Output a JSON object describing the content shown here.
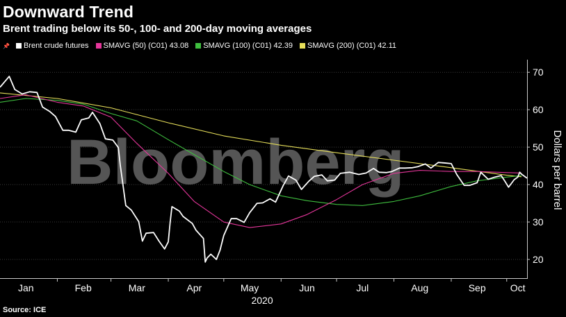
{
  "title": "Downward Trend",
  "subtitle": "Brent trading below its 50-, 100- and 200-day moving averages",
  "watermark": "Bloomberg",
  "source": "Source: ICE",
  "legend": [
    {
      "label": "Brent crude futures",
      "color": "#ffffff"
    },
    {
      "label": "SMAVG (50) (C01) 43.08",
      "color": "#e6369b"
    },
    {
      "label": "SMAVG (100) (C01) 42.39",
      "color": "#3fbf3f"
    },
    {
      "label": "SMAVG (200) (C01) 42.11",
      "color": "#e8e05a"
    }
  ],
  "chart_data": {
    "type": "line",
    "ylabel": "Dollars per barrel",
    "xlabel": "2020",
    "ylim": [
      15,
      73
    ],
    "yticks": [
      20,
      30,
      40,
      50,
      60,
      70
    ],
    "x_axis": {
      "start": "2020-01-01",
      "end": "2020-10-12"
    },
    "xticks": [
      {
        "label": "Jan",
        "date": "2020-01-15"
      },
      {
        "label": "Feb",
        "date": "2020-02-15"
      },
      {
        "label": "Mar",
        "date": "2020-03-15"
      },
      {
        "label": "Apr",
        "date": "2020-04-15"
      },
      {
        "label": "May",
        "date": "2020-05-15"
      },
      {
        "label": "Jun",
        "date": "2020-06-15"
      },
      {
        "label": "Jul",
        "date": "2020-07-15"
      },
      {
        "label": "Aug",
        "date": "2020-08-15"
      },
      {
        "label": "Sep",
        "date": "2020-09-15"
      },
      {
        "label": "Oct",
        "date": "2020-10-07"
      }
    ],
    "grid": true,
    "legend_position": "top-left",
    "series": [
      {
        "name": "SMAVG (200) (C01) 42.11",
        "color": "#e8e05a",
        "points": [
          [
            "2020-01-01",
            64.5
          ],
          [
            "2020-02-01",
            63
          ],
          [
            "2020-03-01",
            60.5
          ],
          [
            "2020-04-01",
            56.5
          ],
          [
            "2020-05-01",
            53
          ],
          [
            "2020-06-01",
            50.5
          ],
          [
            "2020-07-01",
            48.5
          ],
          [
            "2020-08-01",
            46.5
          ],
          [
            "2020-09-01",
            44.5
          ],
          [
            "2020-10-01",
            42.5
          ],
          [
            "2020-10-09",
            42.1
          ]
        ]
      },
      {
        "name": "SMAVG (100) (C01) 42.39",
        "color": "#3fbf3f",
        "points": [
          [
            "2020-01-01",
            62
          ],
          [
            "2020-01-15",
            63
          ],
          [
            "2020-02-01",
            62.5
          ],
          [
            "2020-02-15",
            61.5
          ],
          [
            "2020-03-01",
            59
          ],
          [
            "2020-03-15",
            57
          ],
          [
            "2020-04-01",
            52
          ],
          [
            "2020-04-15",
            48
          ],
          [
            "2020-05-01",
            43.5
          ],
          [
            "2020-05-15",
            40
          ],
          [
            "2020-06-01",
            37
          ],
          [
            "2020-06-15",
            35.7
          ],
          [
            "2020-07-01",
            34.7
          ],
          [
            "2020-07-15",
            34.4
          ],
          [
            "2020-08-01",
            35.5
          ],
          [
            "2020-08-15",
            37
          ],
          [
            "2020-09-01",
            39.5
          ],
          [
            "2020-09-15",
            41
          ],
          [
            "2020-10-01",
            42
          ],
          [
            "2020-10-09",
            42.4
          ]
        ]
      },
      {
        "name": "SMAVG (50) (C01) 43.08",
        "color": "#e6369b",
        "points": [
          [
            "2020-01-01",
            63
          ],
          [
            "2020-01-15",
            64
          ],
          [
            "2020-02-01",
            62
          ],
          [
            "2020-02-15",
            61
          ],
          [
            "2020-03-01",
            58
          ],
          [
            "2020-03-15",
            51
          ],
          [
            "2020-04-01",
            43
          ],
          [
            "2020-04-15",
            35.5
          ],
          [
            "2020-05-01",
            30
          ],
          [
            "2020-05-15",
            28.5
          ],
          [
            "2020-06-01",
            29.5
          ],
          [
            "2020-06-15",
            32
          ],
          [
            "2020-07-01",
            36
          ],
          [
            "2020-07-15",
            40
          ],
          [
            "2020-08-01",
            43
          ],
          [
            "2020-08-15",
            43.8
          ],
          [
            "2020-09-01",
            43.5
          ],
          [
            "2020-09-15",
            43.5
          ],
          [
            "2020-10-01",
            43.2
          ],
          [
            "2020-10-09",
            43.1
          ]
        ]
      },
      {
        "name": "Brent crude futures",
        "color": "#ffffff",
        "points": [
          [
            "2020-01-01",
            66
          ],
          [
            "2020-01-06",
            68.9
          ],
          [
            "2020-01-09",
            65.4
          ],
          [
            "2020-01-13",
            64.2
          ],
          [
            "2020-01-17",
            64.8
          ],
          [
            "2020-01-21",
            64.6
          ],
          [
            "2020-01-24",
            60.7
          ],
          [
            "2020-01-28",
            59.5
          ],
          [
            "2020-01-31",
            58.2
          ],
          [
            "2020-02-04",
            54.5
          ],
          [
            "2020-02-07",
            54.5
          ],
          [
            "2020-02-11",
            54.0
          ],
          [
            "2020-02-14",
            57.3
          ],
          [
            "2020-02-18",
            57.8
          ],
          [
            "2020-02-20",
            59.3
          ],
          [
            "2020-02-24",
            56.3
          ],
          [
            "2020-02-27",
            52.2
          ],
          [
            "2020-03-02",
            51.9
          ],
          [
            "2020-03-05",
            49.9
          ],
          [
            "2020-03-06",
            45.3
          ],
          [
            "2020-03-09",
            34.4
          ],
          [
            "2020-03-12",
            33.2
          ],
          [
            "2020-03-16",
            30.1
          ],
          [
            "2020-03-18",
            24.9
          ],
          [
            "2020-03-20",
            27.0
          ],
          [
            "2020-03-24",
            27.2
          ],
          [
            "2020-03-27",
            24.9
          ],
          [
            "2020-03-30",
            22.8
          ],
          [
            "2020-04-01",
            24.7
          ],
          [
            "2020-04-02",
            29.9
          ],
          [
            "2020-04-03",
            34.1
          ],
          [
            "2020-04-07",
            32.9
          ],
          [
            "2020-04-09",
            31.5
          ],
          [
            "2020-04-14",
            29.6
          ],
          [
            "2020-04-16",
            27.8
          ],
          [
            "2020-04-20",
            25.6
          ],
          [
            "2020-04-21",
            19.3
          ],
          [
            "2020-04-22",
            20.4
          ],
          [
            "2020-04-24",
            21.4
          ],
          [
            "2020-04-27",
            20.0
          ],
          [
            "2020-04-29",
            22.5
          ],
          [
            "2020-05-01",
            26.4
          ],
          [
            "2020-05-05",
            30.9
          ],
          [
            "2020-05-08",
            30.9
          ],
          [
            "2020-05-12",
            29.9
          ],
          [
            "2020-05-15",
            32.5
          ],
          [
            "2020-05-19",
            35.0
          ],
          [
            "2020-05-22",
            35.1
          ],
          [
            "2020-05-26",
            36.2
          ],
          [
            "2020-05-29",
            35.3
          ],
          [
            "2020-06-02",
            39.6
          ],
          [
            "2020-06-05",
            42.3
          ],
          [
            "2020-06-09",
            41.2
          ],
          [
            "2020-06-12",
            38.7
          ],
          [
            "2020-06-16",
            40.9
          ],
          [
            "2020-06-19",
            42.2
          ],
          [
            "2020-06-23",
            42.6
          ],
          [
            "2020-06-26",
            41.0
          ],
          [
            "2020-06-30",
            41.2
          ],
          [
            "2020-07-03",
            43.0
          ],
          [
            "2020-07-08",
            43.3
          ],
          [
            "2020-07-13",
            42.7
          ],
          [
            "2020-07-17",
            43.1
          ],
          [
            "2020-07-21",
            44.3
          ],
          [
            "2020-07-24",
            43.3
          ],
          [
            "2020-07-28",
            43.2
          ],
          [
            "2020-07-31",
            43.5
          ],
          [
            "2020-08-04",
            44.4
          ],
          [
            "2020-08-07",
            44.4
          ],
          [
            "2020-08-11",
            44.5
          ],
          [
            "2020-08-14",
            44.8
          ],
          [
            "2020-08-18",
            45.5
          ],
          [
            "2020-08-21",
            44.4
          ],
          [
            "2020-08-25",
            45.9
          ],
          [
            "2020-08-28",
            45.8
          ],
          [
            "2020-09-01",
            45.6
          ],
          [
            "2020-09-04",
            42.7
          ],
          [
            "2020-09-08",
            39.8
          ],
          [
            "2020-09-11",
            39.8
          ],
          [
            "2020-09-15",
            40.5
          ],
          [
            "2020-09-17",
            43.3
          ],
          [
            "2020-09-21",
            41.4
          ],
          [
            "2020-09-24",
            41.9
          ],
          [
            "2020-09-28",
            42.4
          ],
          [
            "2020-09-30",
            40.9
          ],
          [
            "2020-10-02",
            39.3
          ],
          [
            "2020-10-05",
            41.3
          ],
          [
            "2020-10-07",
            42.0
          ],
          [
            "2020-10-08",
            43.3
          ],
          [
            "2020-10-09",
            42.8
          ],
          [
            "2020-10-12",
            41.7
          ]
        ]
      }
    ]
  }
}
